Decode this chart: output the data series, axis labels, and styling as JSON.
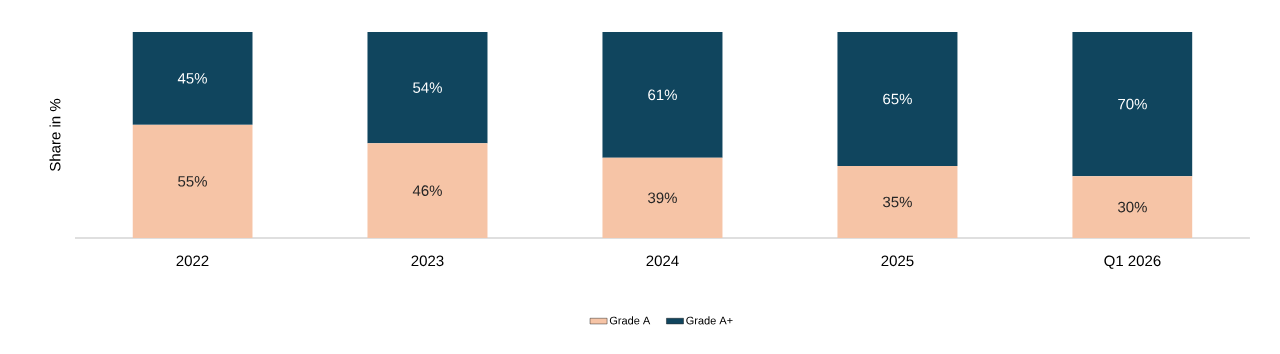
{
  "chart_data": {
    "type": "bar",
    "stacked": true,
    "ylabel": "Share in %",
    "categories": [
      "2022",
      "2023",
      "2024",
      "2025",
      "Q1 2026"
    ],
    "series": [
      {
        "name": "Grade A",
        "color": "#f6c4a6",
        "values": [
          55,
          46,
          39,
          35,
          30
        ],
        "value_labels": [
          "55%",
          "46%",
          "39%",
          "35%",
          "30%"
        ]
      },
      {
        "name": "Grade A+",
        "color": "#10455e",
        "values": [
          45,
          54,
          61,
          65,
          70
        ],
        "value_labels": [
          "45%",
          "54%",
          "61%",
          "65%",
          "70%"
        ]
      }
    ],
    "legend": "bottom"
  }
}
